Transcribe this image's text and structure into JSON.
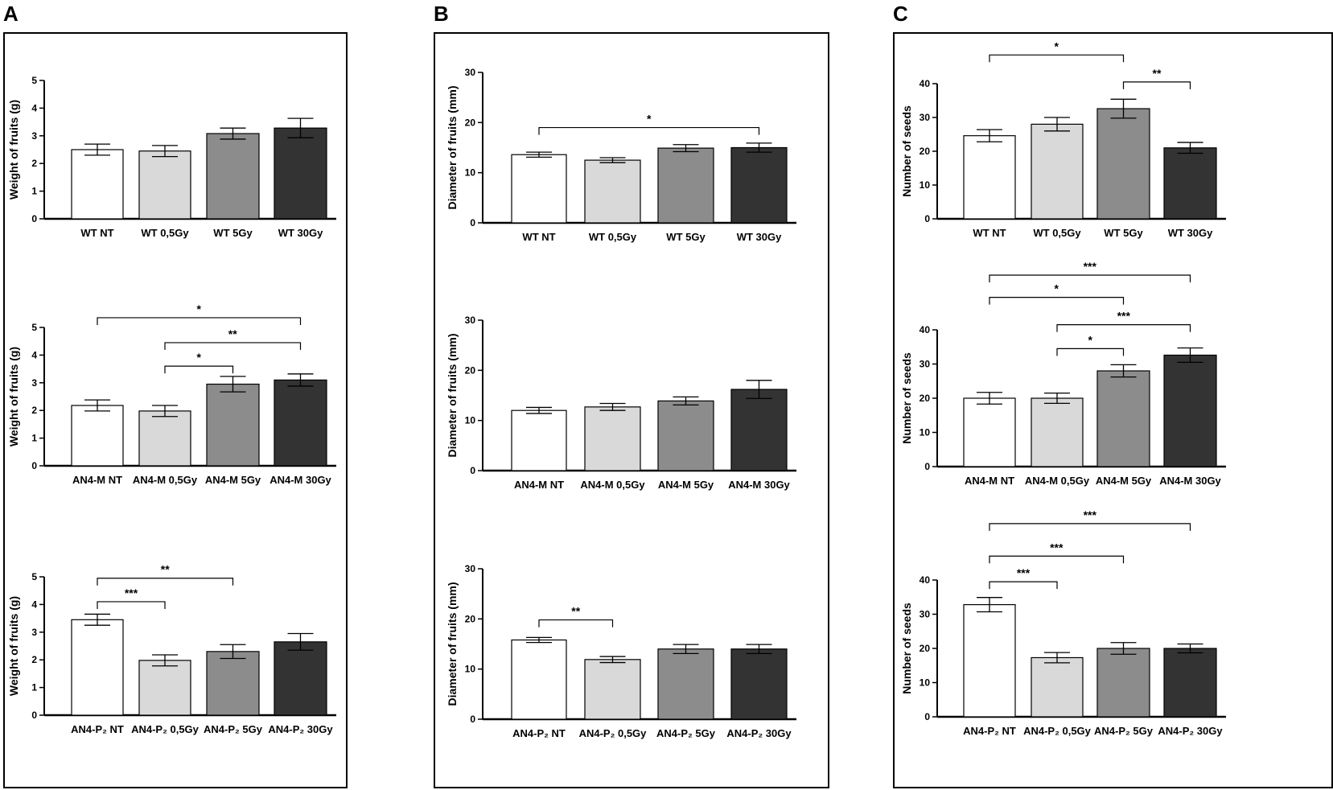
{
  "panels": [
    {
      "letter": "A"
    },
    {
      "letter": "B"
    },
    {
      "letter": "C"
    }
  ],
  "chart_data": [
    {
      "type": "bar",
      "panel": "A",
      "row": 1,
      "ylabel": "Weight of fruits  (g)",
      "ylim": [
        0,
        5
      ],
      "yticks": [
        0,
        1,
        2,
        3,
        4,
        5
      ],
      "categories": [
        "WT NT",
        "WT 0,5Gy",
        "WT 5Gy",
        "WT 30Gy"
      ],
      "values": [
        2.5,
        2.45,
        3.08,
        3.28
      ],
      "errors": [
        0.2,
        0.2,
        0.2,
        0.35
      ],
      "colors": [
        "#ffffff",
        "#d9d9d9",
        "#8c8c8c",
        "#333333"
      ],
      "significance": []
    },
    {
      "type": "bar",
      "panel": "A",
      "row": 2,
      "ylabel": "Weight of fruits  (g)",
      "ylim": [
        0,
        5
      ],
      "yticks": [
        0,
        1,
        2,
        3,
        4,
        5
      ],
      "categories": [
        "AN4-M NT",
        "AN4-M 0,5Gy",
        "AN4-M 5Gy",
        "AN4-M 30Gy"
      ],
      "values": [
        2.18,
        1.98,
        2.95,
        3.1
      ],
      "errors": [
        0.2,
        0.2,
        0.28,
        0.22
      ],
      "colors": [
        "#ffffff",
        "#d9d9d9",
        "#8c8c8c",
        "#333333"
      ],
      "significance": [
        {
          "from": 0,
          "to": 3,
          "level": 5.35,
          "label": "*"
        },
        {
          "from": 1,
          "to": 3,
          "level": 4.45,
          "label": "**"
        },
        {
          "from": 1,
          "to": 2,
          "level": 3.6,
          "label": "*"
        }
      ]
    },
    {
      "type": "bar",
      "panel": "A",
      "row": 3,
      "ylabel": "Weight of fruits  (g)",
      "ylim": [
        0,
        5
      ],
      "yticks": [
        0,
        1,
        2,
        3,
        4,
        5
      ],
      "categories": [
        "AN4-P₂ NT",
        "AN4-P₂ 0,5Gy",
        "AN4-P₂ 5Gy",
        "AN4-P₂ 30Gy"
      ],
      "values": [
        3.45,
        1.98,
        2.3,
        2.65
      ],
      "errors": [
        0.2,
        0.2,
        0.25,
        0.3
      ],
      "colors": [
        "#ffffff",
        "#d9d9d9",
        "#8c8c8c",
        "#333333"
      ],
      "significance": [
        {
          "from": 0,
          "to": 2,
          "level": 4.95,
          "label": "**"
        },
        {
          "from": 0,
          "to": 1,
          "level": 4.1,
          "label": "***"
        }
      ]
    },
    {
      "type": "bar",
      "panel": "B",
      "row": 1,
      "ylabel": "Diameter of fruits (mm)",
      "ylim": [
        0,
        30
      ],
      "yticks": [
        0,
        10,
        20,
        30
      ],
      "categories": [
        "WT NT",
        "WT 0,5Gy",
        "WT 5Gy",
        "WT 30Gy"
      ],
      "values": [
        13.6,
        12.5,
        14.9,
        15.0
      ],
      "errors": [
        0.5,
        0.5,
        0.7,
        0.9
      ],
      "colors": [
        "#ffffff",
        "#d9d9d9",
        "#8c8c8c",
        "#333333"
      ],
      "significance": [
        {
          "from": 0,
          "to": 3,
          "level": 19.0,
          "label": "*"
        }
      ]
    },
    {
      "type": "bar",
      "panel": "B",
      "row": 2,
      "ylabel": "Diameter of fruits (mm)",
      "ylim": [
        0,
        30
      ],
      "yticks": [
        0,
        10,
        20,
        30
      ],
      "categories": [
        "AN4-M NT",
        "AN4-M 0,5Gy",
        "AN4-M 5Gy",
        "AN4-M 30Gy"
      ],
      "values": [
        12.0,
        12.7,
        13.9,
        16.2
      ],
      "errors": [
        0.6,
        0.7,
        0.8,
        1.8
      ],
      "colors": [
        "#ffffff",
        "#d9d9d9",
        "#8c8c8c",
        "#333333"
      ],
      "significance": []
    },
    {
      "type": "bar",
      "panel": "B",
      "row": 3,
      "ylabel": "Diameter of fruits (mm)",
      "ylim": [
        0,
        30
      ],
      "yticks": [
        0,
        10,
        20,
        30
      ],
      "categories": [
        "AN4-P₂ NT",
        "AN4-P₂ 0,5Gy",
        "AN4-P₂ 5Gy",
        "AN4-P₂ 30Gy"
      ],
      "values": [
        15.8,
        11.9,
        14.0,
        14.0
      ],
      "errors": [
        0.5,
        0.6,
        0.9,
        0.9
      ],
      "colors": [
        "#ffffff",
        "#d9d9d9",
        "#8c8c8c",
        "#333333"
      ],
      "significance": [
        {
          "from": 0,
          "to": 1,
          "level": 19.8,
          "label": "**"
        }
      ]
    },
    {
      "type": "bar",
      "panel": "C",
      "row": 1,
      "ylabel": "Number of seeds",
      "ylim": [
        0,
        40
      ],
      "yticks": [
        0,
        10,
        20,
        30,
        40
      ],
      "categories": [
        "WT NT",
        "WT 0,5Gy",
        "WT 5Gy",
        "WT 30Gy"
      ],
      "values": [
        24.6,
        28.0,
        32.6,
        21.0
      ],
      "errors": [
        1.8,
        2.0,
        2.8,
        1.6
      ],
      "colors": [
        "#ffffff",
        "#d9d9d9",
        "#8c8c8c",
        "#333333"
      ],
      "significance": [
        {
          "from": 0,
          "to": 2,
          "level": 48.5,
          "label": "*"
        },
        {
          "from": 2,
          "to": 3,
          "level": 40.5,
          "label": "**"
        }
      ]
    },
    {
      "type": "bar",
      "panel": "C",
      "row": 2,
      "ylabel": "Number of seeds",
      "ylim": [
        0,
        40
      ],
      "yticks": [
        0,
        10,
        20,
        30,
        40
      ],
      "categories": [
        "AN4-M NT",
        "AN4-M 0,5Gy",
        "AN4-M 5Gy",
        "AN4-M 30Gy"
      ],
      "values": [
        20.0,
        20.0,
        28.0,
        32.6
      ],
      "errors": [
        1.7,
        1.5,
        1.8,
        2.1
      ],
      "colors": [
        "#ffffff",
        "#d9d9d9",
        "#8c8c8c",
        "#333333"
      ],
      "significance": [
        {
          "from": 0,
          "to": 3,
          "level": 56.0,
          "label": "***"
        },
        {
          "from": 0,
          "to": 2,
          "level": 49.5,
          "label": "*"
        },
        {
          "from": 1,
          "to": 3,
          "level": 41.5,
          "label": "***"
        },
        {
          "from": 1,
          "to": 2,
          "level": 34.5,
          "label": "*"
        }
      ]
    },
    {
      "type": "bar",
      "panel": "C",
      "row": 3,
      "ylabel": "Number of seeds",
      "ylim": [
        0,
        40
      ],
      "yticks": [
        0,
        10,
        20,
        30,
        40
      ],
      "categories": [
        "AN4-P₂ NT",
        "AN4-P₂ 0,5Gy",
        "AN4-P₂ 5Gy",
        "AN4-P₂ 30Gy"
      ],
      "values": [
        32.8,
        17.3,
        20.0,
        20.0
      ],
      "errors": [
        2.1,
        1.5,
        1.7,
        1.3
      ],
      "colors": [
        "#ffffff",
        "#d9d9d9",
        "#8c8c8c",
        "#333333"
      ],
      "significance": [
        {
          "from": 0,
          "to": 3,
          "level": 56.5,
          "label": "***"
        },
        {
          "from": 0,
          "to": 2,
          "level": 47.0,
          "label": "***"
        },
        {
          "from": 0,
          "to": 1,
          "level": 39.5,
          "label": "***"
        }
      ]
    }
  ]
}
